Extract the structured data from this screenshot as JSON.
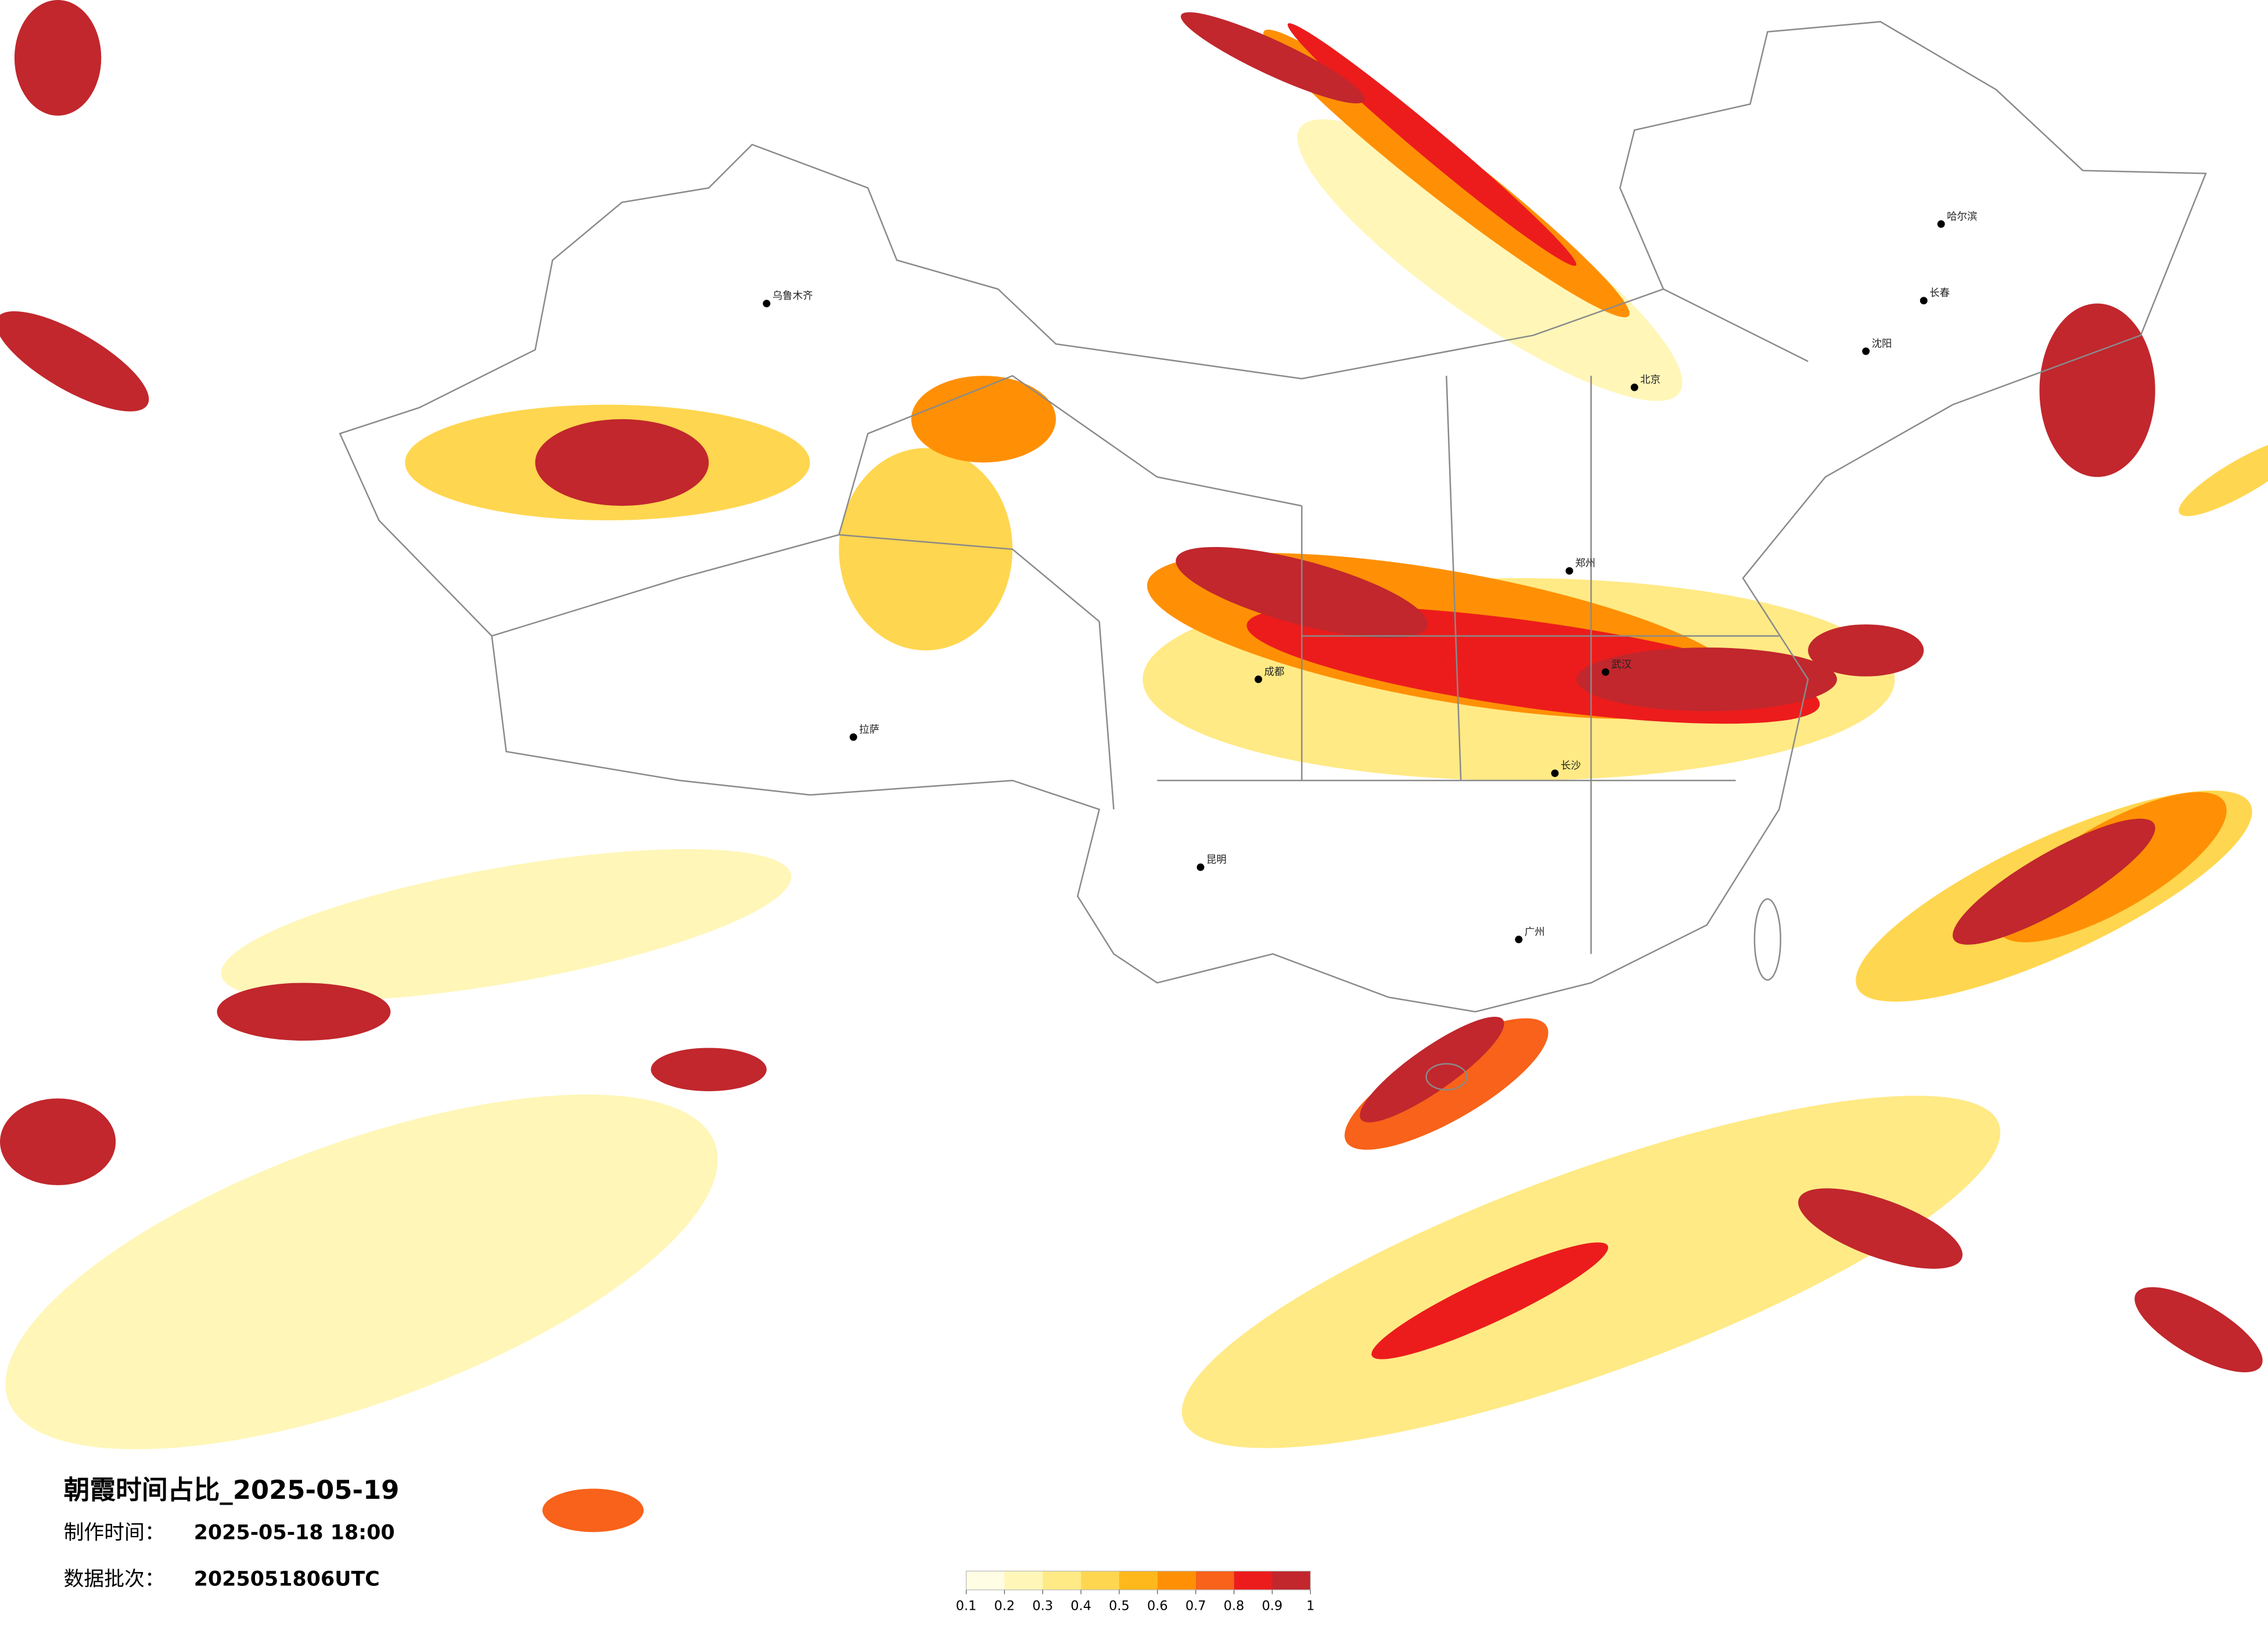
{
  "header": {
    "title": "朝霞时间占比_2025-05-19",
    "made_label": "制作时间：",
    "made_value": "2025-05-18 18:00",
    "batch_label": "数据批次：",
    "batch_value": "2025051806UTC"
  },
  "legend": {
    "ticks": [
      0.1,
      0.2,
      0.3,
      0.4,
      0.5,
      0.6,
      0.7,
      0.8,
      0.9,
      1
    ],
    "colors": [
      "#fffde3",
      "#fff6b8",
      "#ffea85",
      "#ffd64f",
      "#ffb81c",
      "#ff9005",
      "#f8621a",
      "#ec1c1c",
      "#c1272d"
    ]
  },
  "cities": [
    {
      "name": "哈尔滨"
    },
    {
      "name": "长春"
    },
    {
      "name": "沈阳"
    },
    {
      "name": "北京"
    },
    {
      "name": "郑州"
    },
    {
      "name": "武汉"
    },
    {
      "name": "长沙"
    },
    {
      "name": "广州"
    },
    {
      "name": "成都"
    },
    {
      "name": "昆明"
    },
    {
      "name": "拉萨"
    },
    {
      "name": "乌鲁木齐"
    }
  ]
}
